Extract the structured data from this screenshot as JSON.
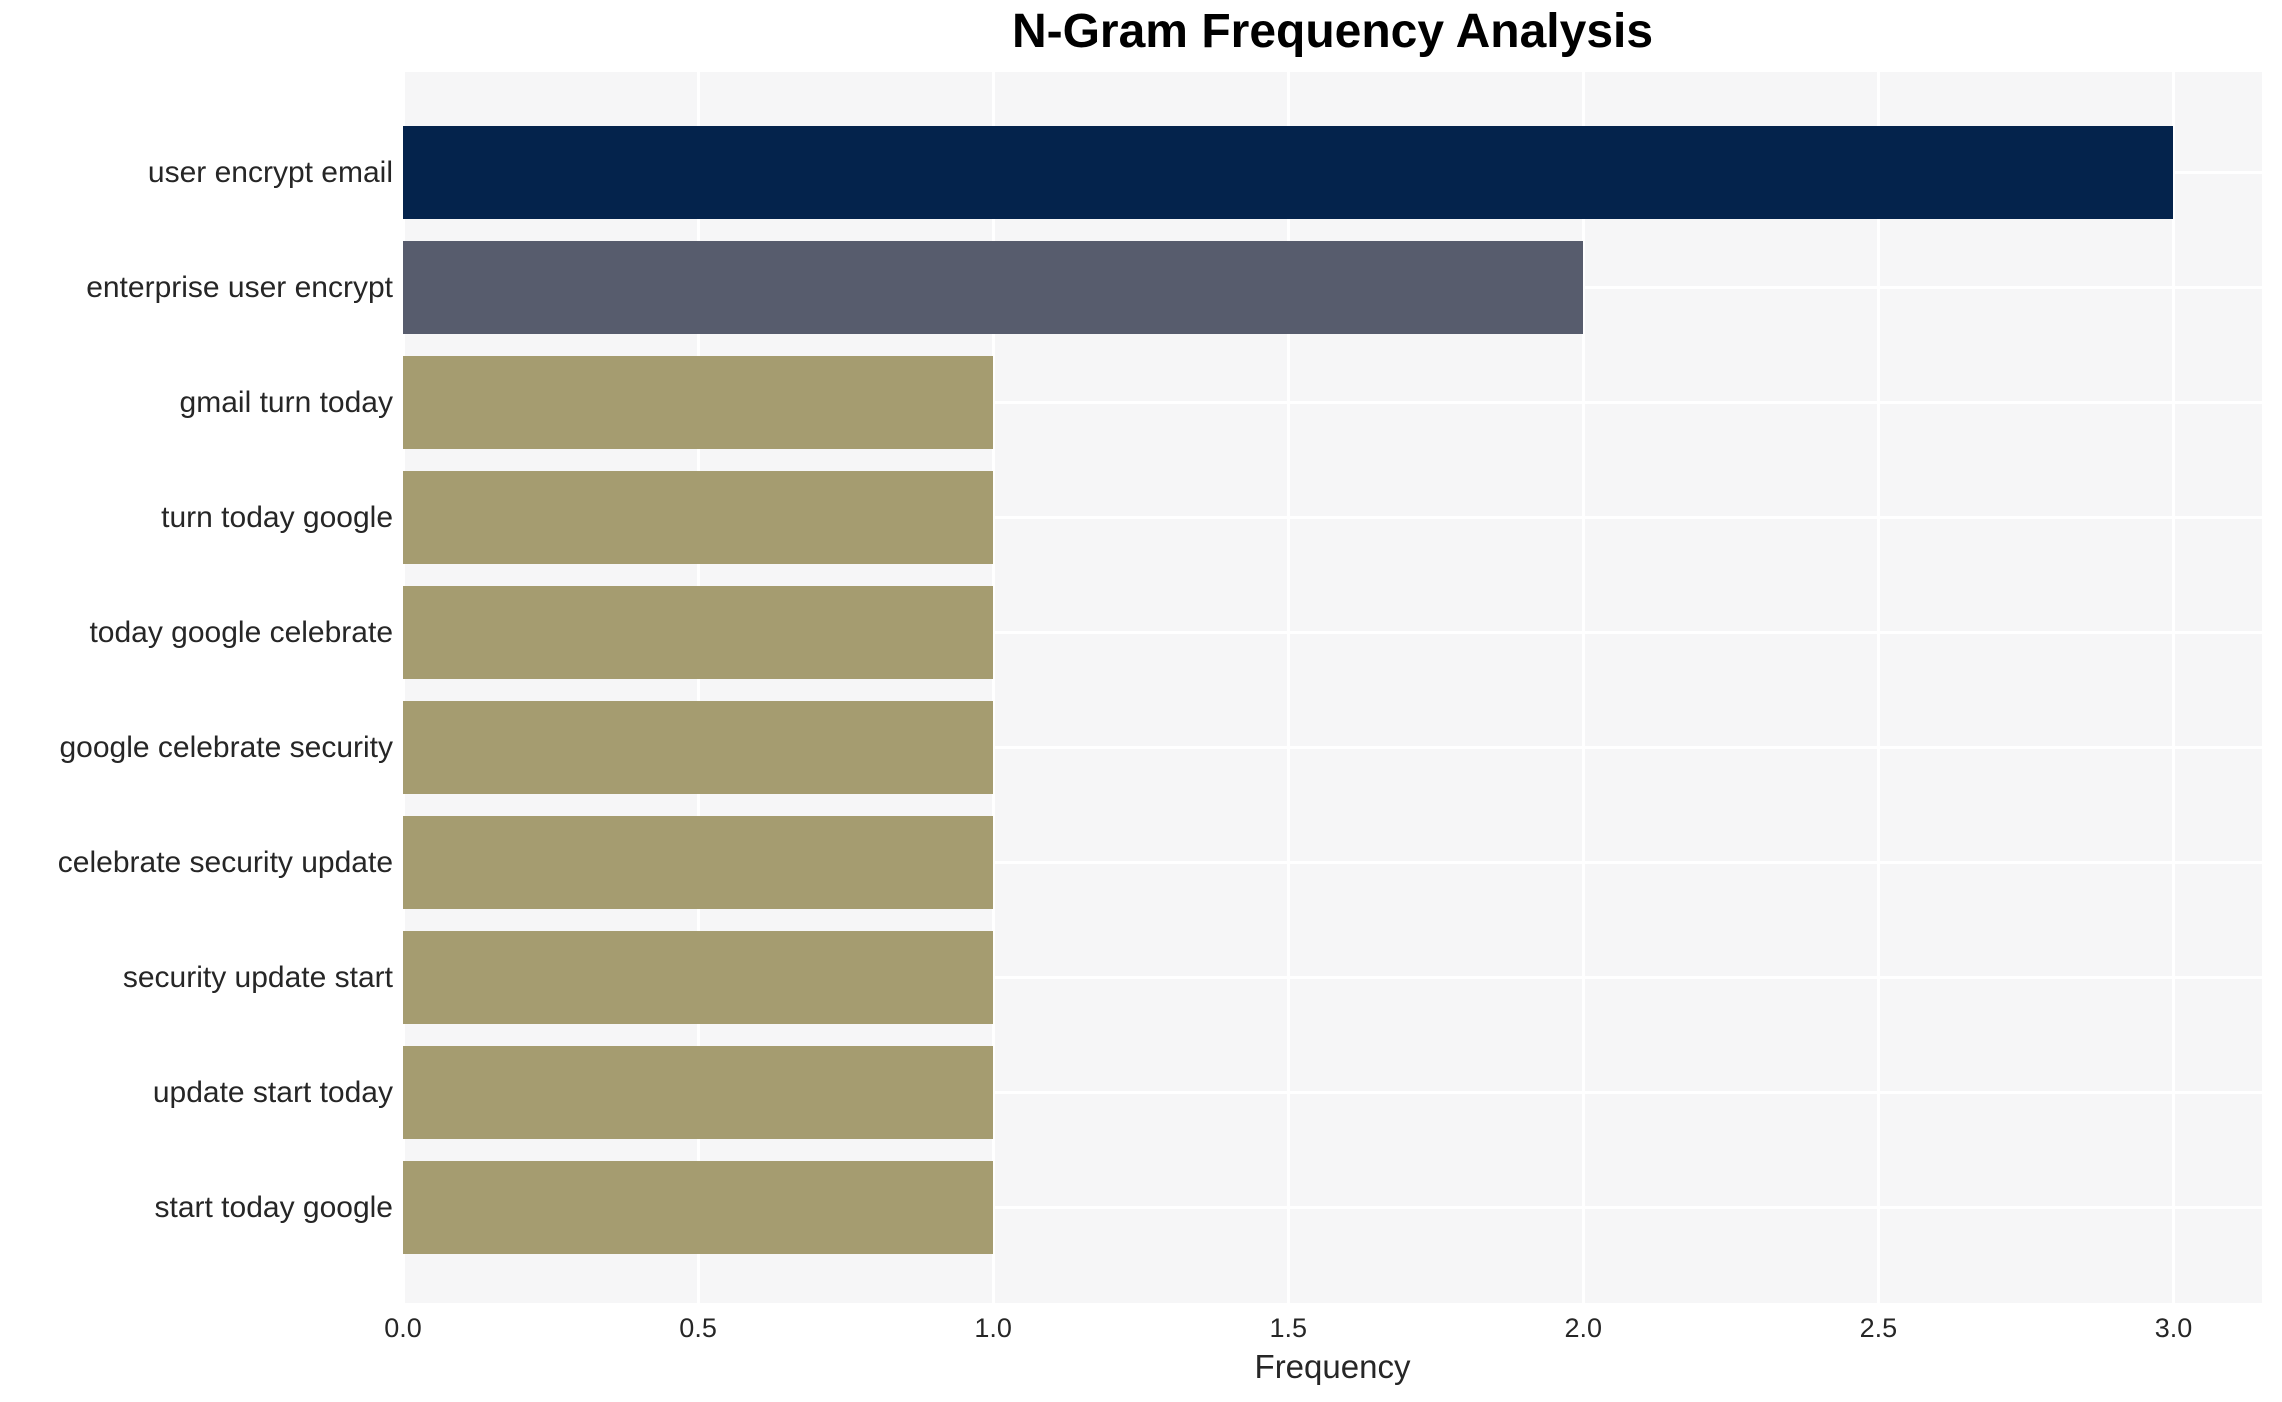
{
  "chart_data": {
    "type": "bar",
    "orientation": "horizontal",
    "title": "N-Gram Frequency Analysis",
    "xlabel": "Frequency",
    "ylabel": "",
    "categories": [
      "user encrypt email",
      "enterprise user encrypt",
      "gmail turn today",
      "turn today google",
      "today google celebrate",
      "google celebrate security",
      "celebrate security update",
      "security update start",
      "update start today",
      "start today google"
    ],
    "values": [
      3,
      2,
      1,
      1,
      1,
      1,
      1,
      1,
      1,
      1
    ],
    "xlim": [
      0,
      3.15
    ],
    "xticks": [
      0,
      0.5,
      1,
      1.5,
      2,
      2.5,
      3
    ],
    "xtick_labels": [
      "0.0",
      "0.5",
      "1.0",
      "1.5",
      "2.0",
      "2.5",
      "3.0"
    ],
    "grid": true,
    "legend": "none",
    "colors": {
      "bar_colors": [
        "#04234c",
        "#575c6d",
        "#a59c70",
        "#a59c70",
        "#a59c70",
        "#a59c70",
        "#a59c70",
        "#a59c70",
        "#a59c70",
        "#a59c70"
      ],
      "plot_background": "#f6f6f7",
      "gridline": "#ffffff",
      "figure_background": "#ffffff",
      "tick_text": "#262626",
      "title_text": "#000000"
    }
  }
}
